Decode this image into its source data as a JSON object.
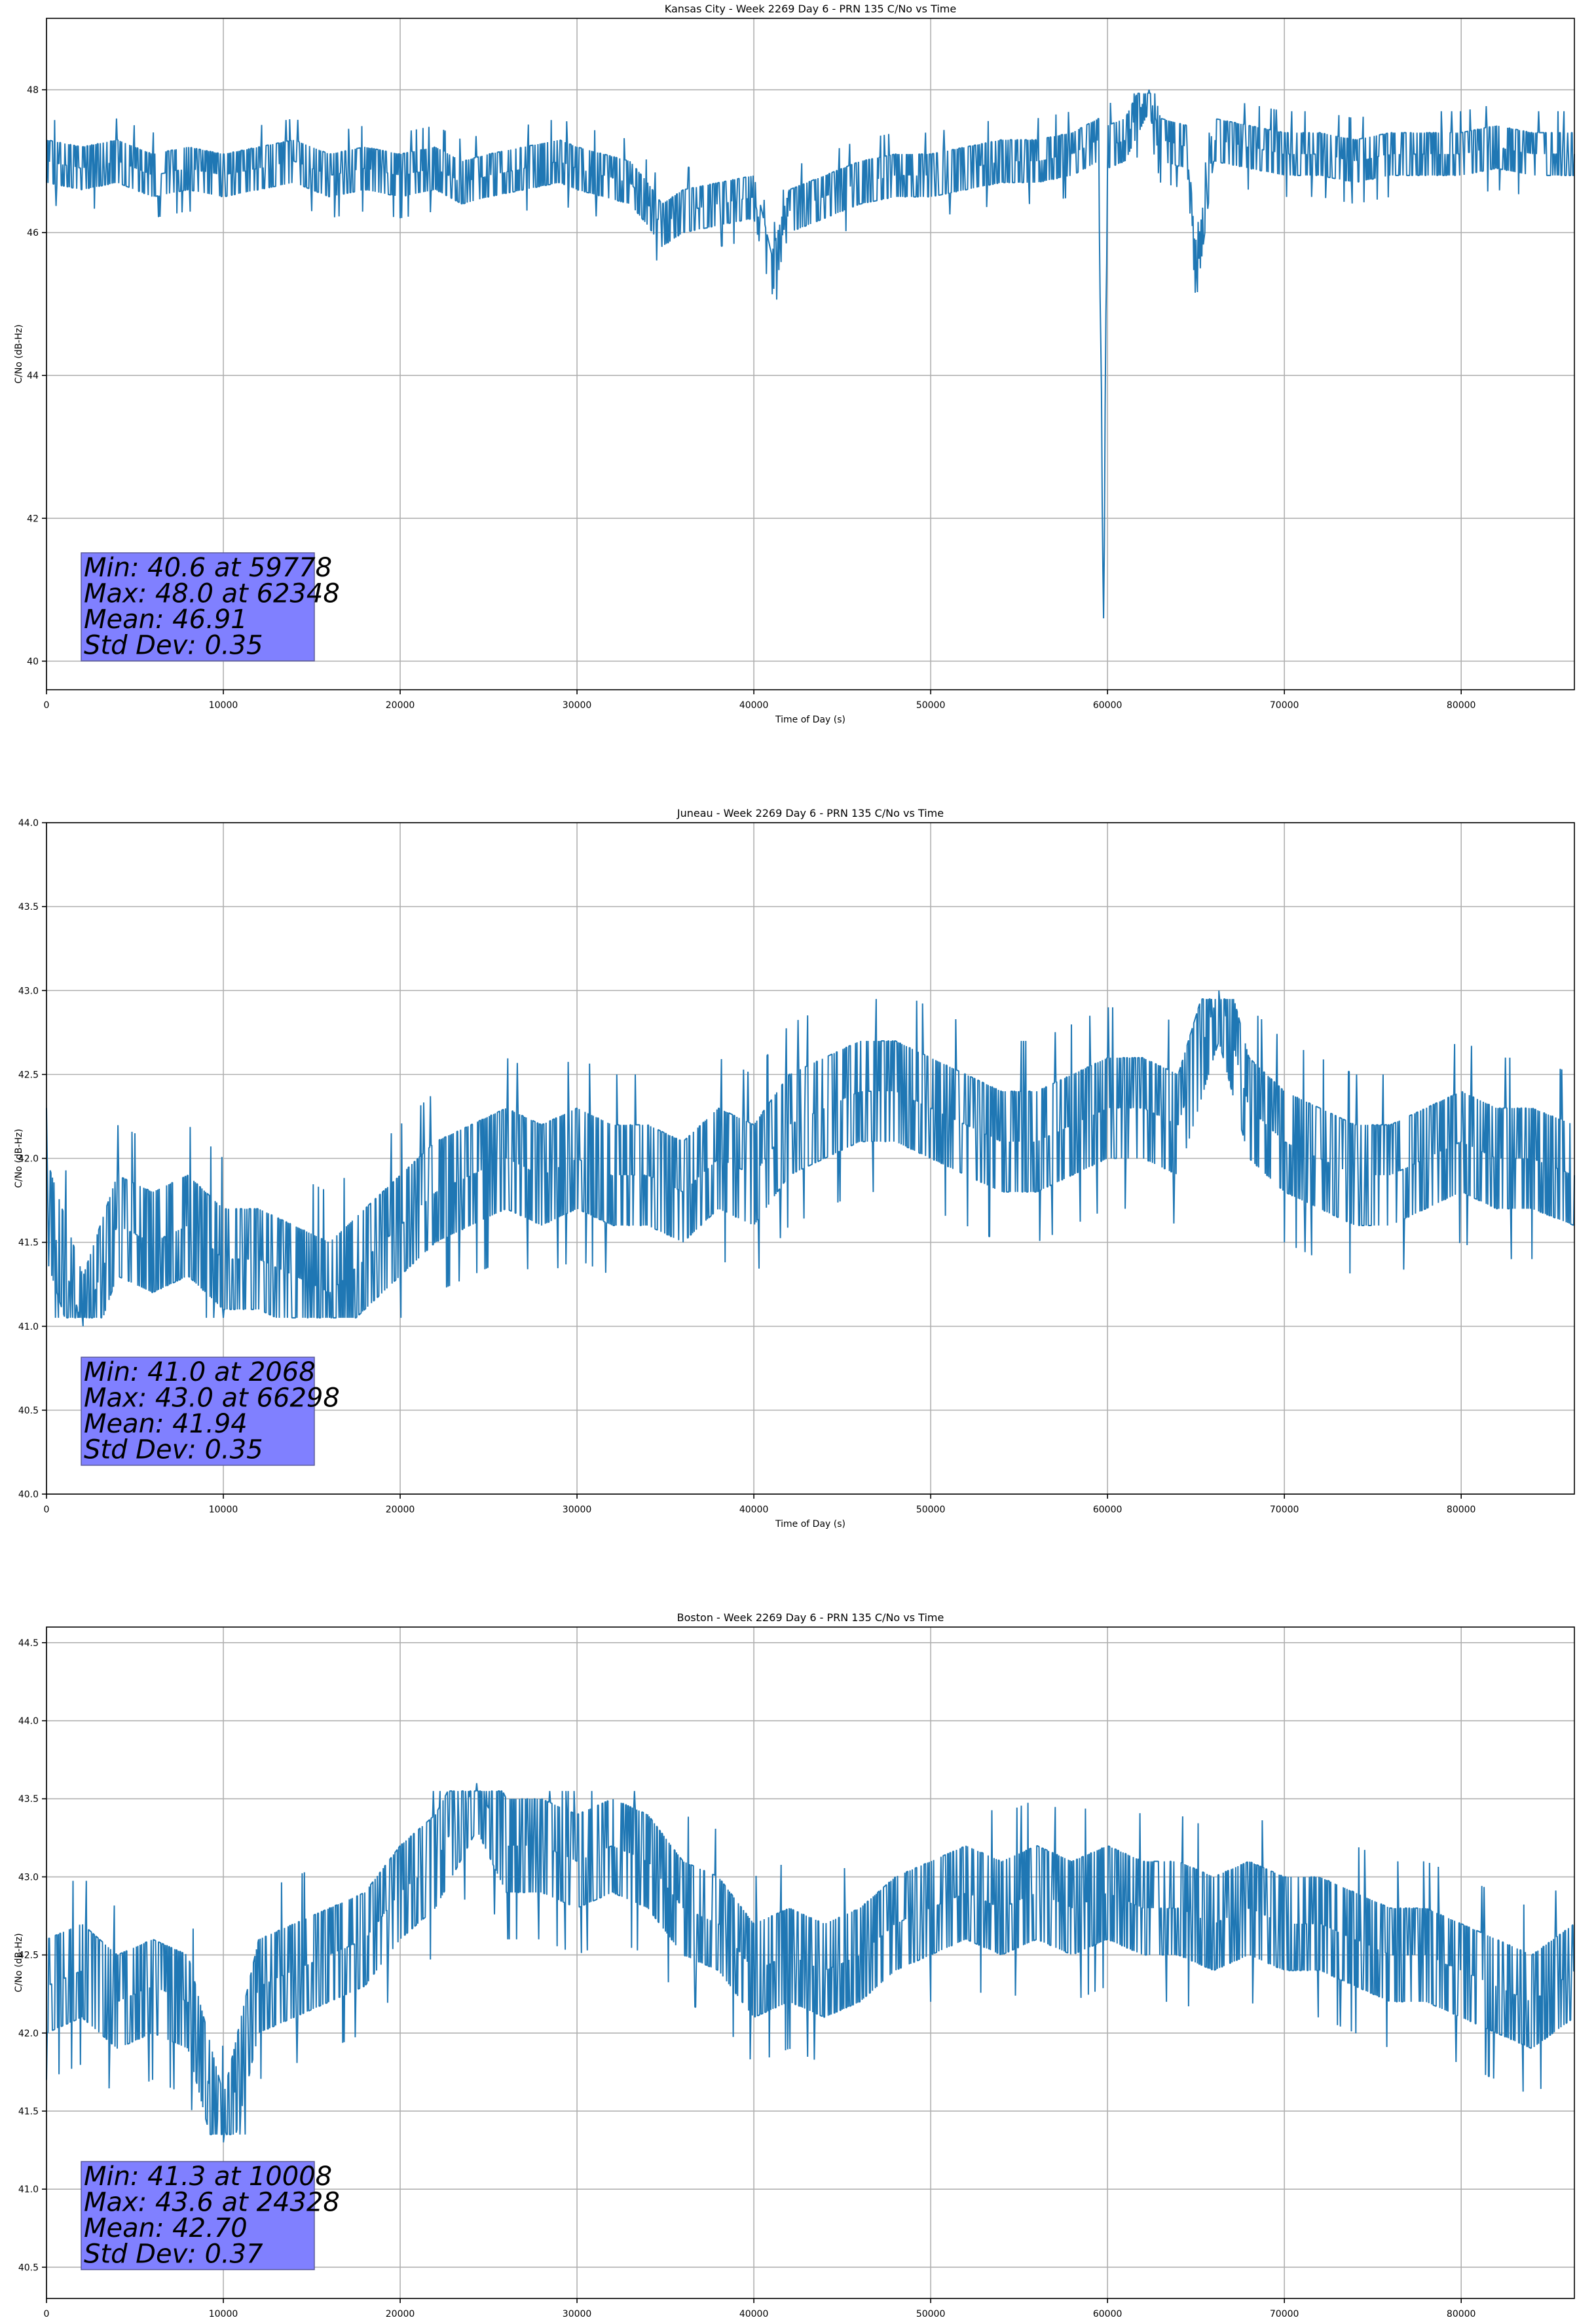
{
  "chart_data": [
    {
      "type": "line",
      "title": "Kansas City - Week 2269 Day 6 - PRN 135 C/No vs Time",
      "xlabel": "Time of Day (s)",
      "ylabel": "C/No (dB-Hz)",
      "xlim": [
        0,
        86400
      ],
      "ylim": [
        39.6,
        49.0
      ],
      "xticks": [
        0,
        10000,
        20000,
        30000,
        40000,
        50000,
        60000,
        70000,
        80000
      ],
      "yticks": [
        40,
        42,
        44,
        46,
        48
      ],
      "ytick_labels": [
        "40",
        "42",
        "44",
        "46",
        "48"
      ],
      "grid": true,
      "color": "#1f77b4",
      "series": [
        {
          "x": [
            0,
            2000,
            4000,
            6000,
            8000,
            10000,
            12000,
            14000,
            16000,
            18000,
            20000,
            22000,
            23500,
            25000,
            27000,
            29000,
            30000,
            31500,
            33000,
            34000,
            34800,
            36000,
            38000,
            40000,
            41000,
            42000,
            44000,
            45000,
            46000,
            48000,
            50000,
            52000,
            54000,
            56000,
            58000,
            59500,
            59778,
            60000,
            61000,
            62348,
            63000,
            64500,
            65000,
            66000,
            68000,
            70000,
            72000,
            74000,
            76000,
            78000,
            80000,
            82000,
            84000,
            86400
          ],
          "y": [
            47.0,
            46.9,
            47.0,
            46.8,
            46.9,
            46.8,
            46.9,
            47.0,
            46.8,
            46.9,
            46.8,
            46.9,
            46.7,
            46.8,
            46.9,
            47.0,
            46.9,
            46.8,
            46.7,
            46.4,
            46.1,
            46.3,
            46.4,
            46.5,
            45.4,
            46.3,
            46.5,
            46.6,
            46.7,
            46.8,
            46.8,
            46.9,
            47.0,
            47.0,
            47.1,
            47.3,
            40.6,
            47.2,
            47.3,
            48.0,
            47.3,
            47.2,
            45.3,
            47.3,
            47.2,
            47.1,
            47.1,
            47.0,
            47.1,
            47.1,
            47.1,
            47.2,
            47.1,
            47.1
          ]
        }
      ],
      "stats_box": [
        "Min: 40.6 at 59778",
        "Max: 48.0 at 62348",
        "Mean: 46.91",
        "Std Dev: 0.35"
      ]
    },
    {
      "type": "line",
      "title": "Juneau - Week 2269 Day 6 - PRN 135 C/No vs Time",
      "xlabel": "Time of Day (s)",
      "ylabel": "C/No (dB-Hz)",
      "xlim": [
        0,
        86400
      ],
      "ylim": [
        40.0,
        44.0
      ],
      "xticks": [
        0,
        10000,
        20000,
        30000,
        40000,
        50000,
        60000,
        70000,
        80000
      ],
      "yticks": [
        40.0,
        40.5,
        41.0,
        41.5,
        42.0,
        42.5,
        43.0,
        43.5,
        44.0
      ],
      "ytick_labels": [
        "40.0",
        "40.5",
        "41.0",
        "41.5",
        "42.0",
        "42.5",
        "43.0",
        "43.5",
        "44.0"
      ],
      "grid": true,
      "color": "#1f77b4",
      "series": [
        {
          "x": [
            0,
            2068,
            4000,
            6000,
            8000,
            10000,
            12000,
            14000,
            16000,
            18000,
            20000,
            22000,
            24000,
            26000,
            28000,
            30000,
            32000,
            34000,
            36000,
            38000,
            40000,
            42000,
            44000,
            46000,
            48000,
            50000,
            52000,
            54000,
            56000,
            58000,
            60000,
            62000,
            64000,
            66298,
            68000,
            70000,
            72000,
            74000,
            76000,
            78000,
            80000,
            82000,
            84000,
            86400
          ],
          "y": [
            41.7,
            41.0,
            41.6,
            41.5,
            41.6,
            41.4,
            41.4,
            41.3,
            41.2,
            41.4,
            41.6,
            41.8,
            41.9,
            42.0,
            41.9,
            42.0,
            41.9,
            41.9,
            41.8,
            42.0,
            41.9,
            42.2,
            42.3,
            42.4,
            42.4,
            42.3,
            42.2,
            42.1,
            42.1,
            42.2,
            42.3,
            42.3,
            42.2,
            43.0,
            42.3,
            42.1,
            42.0,
            41.9,
            41.9,
            42.0,
            42.1,
            42.0,
            42.0,
            41.9
          ]
        }
      ],
      "stats_box": [
        "Min: 41.0 at 2068",
        "Max: 43.0 at 66298",
        "Mean: 41.94",
        "Std Dev: 0.35"
      ]
    },
    {
      "type": "line",
      "title": "Boston - Week 2269 Day 6 - PRN 135 C/No vs Time",
      "xlabel": "Time of Day (s)",
      "ylabel": "C/No (dB-Hz)",
      "xlim": [
        0,
        86400
      ],
      "ylim": [
        40.3,
        44.6
      ],
      "xticks": [
        0,
        10000,
        20000,
        30000,
        40000,
        50000,
        60000,
        70000,
        80000
      ],
      "yticks": [
        40.5,
        41.0,
        41.5,
        42.0,
        42.5,
        43.0,
        43.5,
        44.0,
        44.5
      ],
      "ytick_labels": [
        "40.5",
        "41.0",
        "41.5",
        "42.0",
        "42.5",
        "43.0",
        "43.5",
        "44.0",
        "44.5"
      ],
      "grid": true,
      "color": "#1f77b4",
      "series": [
        {
          "x": [
            0,
            2000,
            4000,
            6000,
            8000,
            10008,
            12000,
            14000,
            16000,
            18000,
            20000,
            22000,
            24328,
            26000,
            28000,
            30000,
            32000,
            34000,
            36000,
            38000,
            40000,
            42000,
            44000,
            46000,
            48000,
            50000,
            52000,
            54000,
            56000,
            58000,
            60000,
            62000,
            64000,
            66000,
            68000,
            70000,
            72000,
            74000,
            76000,
            78000,
            80000,
            82000,
            84000,
            86400
          ],
          "y": [
            42.3,
            42.4,
            42.2,
            42.3,
            42.2,
            41.3,
            42.3,
            42.4,
            42.5,
            42.6,
            42.9,
            43.1,
            43.6,
            43.2,
            43.2,
            43.1,
            43.2,
            43.1,
            42.8,
            42.7,
            42.4,
            42.5,
            42.4,
            42.5,
            42.7,
            42.8,
            42.9,
            42.8,
            42.9,
            42.8,
            42.9,
            42.8,
            42.8,
            42.7,
            42.8,
            42.7,
            42.7,
            42.6,
            42.5,
            42.5,
            42.4,
            42.3,
            42.2,
            42.4
          ]
        }
      ],
      "stats_box": [
        "Min: 41.3 at 10008",
        "Max: 43.6 at 24328",
        "Mean: 42.70",
        "Std Dev: 0.37"
      ]
    }
  ]
}
